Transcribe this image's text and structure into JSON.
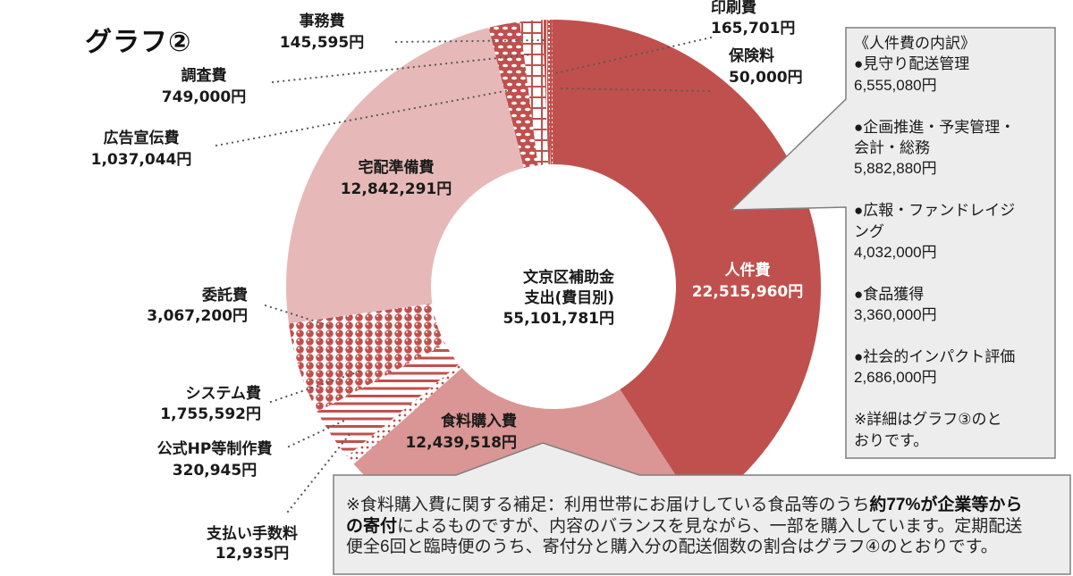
{
  "chart_data": {
    "type": "pie",
    "title": "グラフ②",
    "center_label": {
      "line1": "文京区補助金",
      "line2": "支出(費目別)",
      "total_text": "55,101,781円"
    },
    "slices": [
      {
        "label": "人件費",
        "value": 22515960,
        "value_text": "22,515,960円",
        "color": "#C0504D",
        "pattern": "solid"
      },
      {
        "label": "食料購入費",
        "value": 12439518,
        "value_text": "12,439,518円",
        "color": "#D99694",
        "pattern": "solid"
      },
      {
        "label": "支払い手数料",
        "value": 12935,
        "value_text": "12,935円",
        "color": "#C0504D",
        "pattern": "smalldot"
      },
      {
        "label": "公式HP等制作費",
        "value": 320945,
        "value_text": "320,945円",
        "color": "#C0504D",
        "pattern": "smalldot"
      },
      {
        "label": "システム費",
        "value": 1755592,
        "value_text": "1,755,592円",
        "color": "#C0504D",
        "pattern": "hstripe"
      },
      {
        "label": "委託費",
        "value": 3067200,
        "value_text": "3,067,200円",
        "color": "#C0504D",
        "pattern": "sphere"
      },
      {
        "label": "宅配準備費",
        "value": 12842291,
        "value_text": "12,842,291円",
        "color": "#E6B9B8",
        "pattern": "solid"
      },
      {
        "label": "広告宣伝費",
        "value": 1037044,
        "value_text": "1,037,044円",
        "color": "#C0504D",
        "pattern": "confetti"
      },
      {
        "label": "調査費",
        "value": 749000,
        "value_text": "749,000円",
        "color": "#C0504D",
        "pattern": "grid"
      },
      {
        "label": "事務費",
        "value": 145595,
        "value_text": "145,595円",
        "color": "#C0504D",
        "pattern": "vline"
      },
      {
        "label": "印刷費",
        "value": 165701,
        "value_text": "165,701円",
        "color": "#C0504D",
        "pattern": "vdash"
      },
      {
        "label": "保険料",
        "value": 50000,
        "value_text": "50,000円",
        "color": "#C0504D",
        "pattern": "solid"
      }
    ]
  },
  "breakdown_callout": {
    "heading": "《人件費の内訳》",
    "items": [
      {
        "label_lines": [
          "●見守り配送管理"
        ],
        "value": "6,555,080円"
      },
      {
        "label_lines": [
          "●企画推進・予実管理・",
          "会計・総務"
        ],
        "value": "5,882,880円"
      },
      {
        "label_lines": [
          "●広報・ファンドレイジ",
          "ング"
        ],
        "value": "4,032,000円"
      },
      {
        "label_lines": [
          "●食品獲得"
        ],
        "value": "3,360,000円"
      },
      {
        "label_lines": [
          "●社会的インパクト評価"
        ],
        "value": "2,686,000円"
      }
    ],
    "footnote_lines": [
      "※詳細はグラフ③のと",
      "おりです。"
    ]
  },
  "note_callout": {
    "lines": [
      [
        {
          "text": "※食料購入費に関する補足：利用世帯にお届けしている食品等のうち",
          "bold": false
        },
        {
          "text": "約77%が企業等から",
          "bold": true
        }
      ],
      [
        {
          "text": "の寄付",
          "bold": true
        },
        {
          "text": "によるものですが、内容のバランスを見ながら、一部を購入しています。定期配送",
          "bold": false
        }
      ],
      [
        {
          "text": "便全6回と臨時便のうち、寄付分と購入分の配送個数の割合はグラフ④のとおりです。",
          "bold": false
        }
      ]
    ]
  },
  "colors": {
    "callout_fill": "#EDEDED",
    "callout_border": "#7F7F7F",
    "leader_line": "#595959",
    "accent": "#C0504D"
  }
}
